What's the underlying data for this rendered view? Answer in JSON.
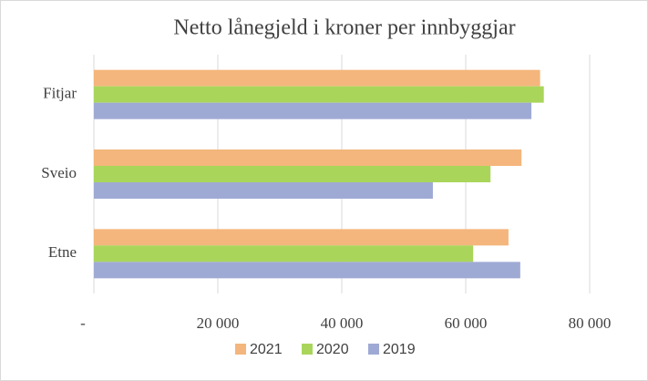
{
  "chart_data": {
    "type": "bar",
    "orientation": "horizontal",
    "title": "Netto lånegjeld i kroner per innbyggjar",
    "categories": [
      "Fitjar",
      "Sveio",
      "Etne"
    ],
    "series": [
      {
        "name": "2021",
        "color": "#f4b67c",
        "values": [
          72000,
          69000,
          66900
        ]
      },
      {
        "name": "2020",
        "color": "#a9d65a",
        "values": [
          72600,
          64000,
          61200
        ]
      },
      {
        "name": "2019",
        "color": "#9faad4",
        "values": [
          70600,
          54700,
          68800
        ]
      }
    ],
    "xlim": [
      0,
      80000
    ],
    "xticks": [
      {
        "value": 0,
        "label": "-"
      },
      {
        "value": 20000,
        "label": "20 000"
      },
      {
        "value": 40000,
        "label": "40 000"
      },
      {
        "value": 60000,
        "label": "60 000"
      },
      {
        "value": 80000,
        "label": "80 000"
      }
    ],
    "grid": true,
    "legend": "bottom"
  }
}
